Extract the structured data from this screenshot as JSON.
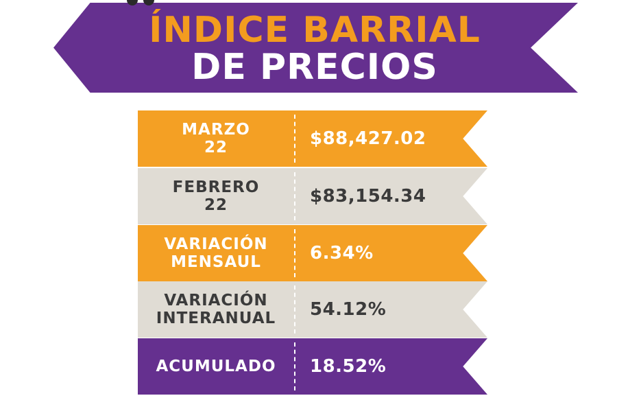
{
  "header": {
    "title_line1": "ÍNDICE BARRIAL",
    "title_line2": "DE PRECIOS"
  },
  "rows": [
    {
      "label_line1": "MARZO",
      "label_line2": "22",
      "value": "$88,427.02",
      "color": "#f4a024"
    },
    {
      "label_line1": "FEBRERO",
      "label_line2": "22",
      "value": "$83,154.34",
      "color": "#e0dcd4"
    },
    {
      "label_line1": "VARIACIÓN",
      "label_line2": "MENSAUL",
      "value": "6.34%",
      "color": "#f4a024"
    },
    {
      "label_line1": "VARIACIÓN",
      "label_line2": "INTERANUAL",
      "value": "54.12%",
      "color": "#e0dcd4"
    },
    {
      "label_line1": "ACUMULADO",
      "label_line2": "",
      "value": "18.52%",
      "color": "#65308f"
    }
  ],
  "colors": {
    "purple": "#65308f",
    "orange": "#f39c1f",
    "gray": "#e0dcd4"
  }
}
